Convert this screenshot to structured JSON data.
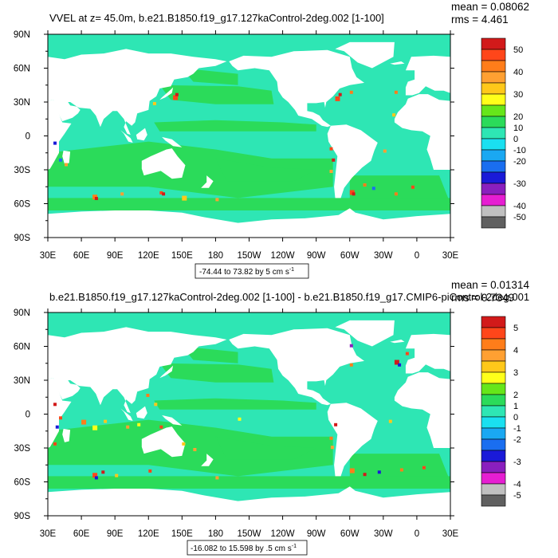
{
  "colors": {
    "ocean_base": "#2ee6b4",
    "ocean_green": "#2bdb5a",
    "land": "#ffffff",
    "palette": [
      "#606060",
      "#c0c0c0",
      "#e61ed2",
      "#8a1fbe",
      "#1a1ad8",
      "#1a6ef0",
      "#1aa8f2",
      "#1ae0f0",
      "#2ee6b4",
      "#2bdb5a",
      "#66e61a",
      "#ffff1a",
      "#ffc81a",
      "#ffa032",
      "#ff7d1a",
      "#ff461a",
      "#d21a1a"
    ]
  },
  "chart_data": [
    {
      "type": "heatmap",
      "title": "VVEL at z=  45.0m, b.e21.B1850.f19_g17.127kaControl-2deg.002 [1-100]",
      "stats": {
        "mean": "mean = 0.08062",
        "rms": "rms = 4.461"
      },
      "xlabel": "",
      "ylabel": "",
      "x_ticks": [
        "30E",
        "60E",
        "90E",
        "120E",
        "150E",
        "180",
        "150W",
        "120W",
        "90W",
        "60W",
        "30W",
        "0",
        "30E"
      ],
      "y_ticks": [
        "90N",
        "60N",
        "30N",
        "0",
        "30S",
        "60S",
        "90S"
      ],
      "xlim": [
        30,
        390
      ],
      "ylim": [
        -90,
        90
      ],
      "colorbar": {
        "levels": [
          50,
          40,
          30,
          20,
          10,
          0,
          -10,
          -20,
          -30,
          -40,
          -50
        ],
        "labels": [
          "50",
          "40",
          "30",
          "20",
          "10",
          "0",
          "-10",
          "-20",
          "-30",
          "-40",
          "-50"
        ]
      },
      "range_text": "-74.44 to 73.82 by 5 cm s",
      "range_units_sup": "-1"
    },
    {
      "type": "heatmap",
      "title": "b.e21.B1850.f19_g17.127kaControl-2deg.002 [1-100] - b.e21.B1850.f19_g17.CMIP6-piControl-2deg.001",
      "stats": {
        "mean": "mean = 0.01314",
        "rms": "rms = 0.7349"
      },
      "xlabel": "",
      "ylabel": "",
      "x_ticks": [
        "30E",
        "60E",
        "90E",
        "120E",
        "150E",
        "180",
        "150W",
        "120W",
        "90W",
        "60W",
        "30W",
        "0",
        "30E"
      ],
      "y_ticks": [
        "90N",
        "60N",
        "30N",
        "0",
        "30S",
        "60S",
        "90S"
      ],
      "xlim": [
        30,
        390
      ],
      "ylim": [
        -90,
        90
      ],
      "colorbar": {
        "levels": [
          5,
          4,
          3,
          2,
          1,
          0,
          -1,
          -2,
          -3,
          -4,
          -5
        ],
        "labels": [
          "5",
          "4",
          "3",
          "2",
          "1",
          "0",
          "-1",
          "-2",
          "-3",
          "-4",
          "-5"
        ]
      },
      "range_text": "-16.082 to 15.598 by .5 cm s",
      "range_units_sup": "-1"
    }
  ]
}
